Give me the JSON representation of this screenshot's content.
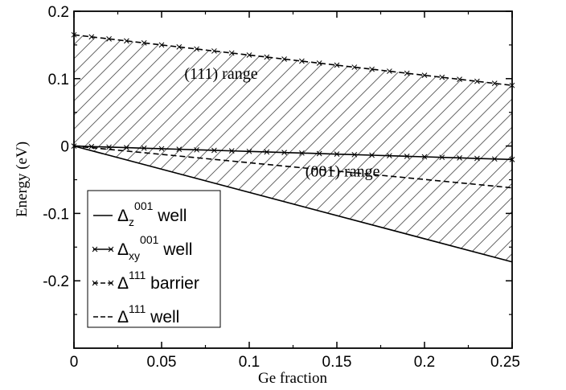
{
  "chart_data": {
    "type": "line",
    "title": "",
    "xlabel": "Ge fraction",
    "ylabel": "Energy (eV)",
    "xlim": [
      0,
      0.25
    ],
    "ylim": [
      -0.3,
      0.2
    ],
    "x_ticks": [
      {
        "value": 0,
        "label": "0"
      },
      {
        "value": 0.05,
        "label": "0.05"
      },
      {
        "value": 0.1,
        "label": "0.1"
      },
      {
        "value": 0.15,
        "label": "0.15"
      },
      {
        "value": 0.2,
        "label": "0.2"
      },
      {
        "value": 0.25,
        "label": "0.25"
      }
    ],
    "y_ticks": [
      {
        "value": -0.2,
        "label": "-0.2"
      },
      {
        "value": -0.1,
        "label": "-0.1"
      },
      {
        "value": 0,
        "label": "0"
      },
      {
        "value": 0.1,
        "label": "0.1"
      },
      {
        "value": 0.2,
        "label": "0.2"
      }
    ],
    "grid": false,
    "legend_placement": "bottom-left",
    "series": [
      {
        "key": "dz001",
        "sym": "Δ",
        "sub": "z",
        "sup": "001",
        "tail": "well",
        "style": "solid",
        "x": [
          0,
          0.25
        ],
        "y": [
          0,
          -0.172
        ]
      },
      {
        "key": "dxy001",
        "sym": "Δ",
        "sub": "xy",
        "sup": "001",
        "tail": "well",
        "style": "solid-x",
        "x": [
          0,
          0.01,
          0.02,
          0.03,
          0.04,
          0.05,
          0.06,
          0.07,
          0.08,
          0.09,
          0.1,
          0.11,
          0.12,
          0.13,
          0.14,
          0.15,
          0.16,
          0.17,
          0.18,
          0.19,
          0.2,
          0.21,
          0.22,
          0.23,
          0.24,
          0.25
        ],
        "y": [
          0,
          -0.0008,
          -0.0016,
          -0.0024,
          -0.0032,
          -0.004,
          -0.0048,
          -0.0056,
          -0.0064,
          -0.0072,
          -0.008,
          -0.0088,
          -0.0096,
          -0.0104,
          -0.0112,
          -0.012,
          -0.0128,
          -0.0136,
          -0.0144,
          -0.0152,
          -0.016,
          -0.0168,
          -0.0176,
          -0.0184,
          -0.0192,
          -0.02
        ]
      },
      {
        "key": "d111b",
        "sym": "Δ",
        "sub": "",
        "sup": "111",
        "tail": "barrier",
        "style": "dashed-x",
        "x": [
          0,
          0.01,
          0.02,
          0.03,
          0.04,
          0.05,
          0.06,
          0.07,
          0.08,
          0.09,
          0.1,
          0.11,
          0.12,
          0.13,
          0.14,
          0.15,
          0.16,
          0.17,
          0.18,
          0.19,
          0.2,
          0.21,
          0.22,
          0.23,
          0.24,
          0.25
        ],
        "y": [
          0.165,
          0.162,
          0.159,
          0.156,
          0.153,
          0.15,
          0.147,
          0.144,
          0.141,
          0.138,
          0.135,
          0.132,
          0.129,
          0.126,
          0.123,
          0.12,
          0.117,
          0.114,
          0.111,
          0.108,
          0.105,
          0.102,
          0.099,
          0.096,
          0.093,
          0.09
        ]
      },
      {
        "key": "d111w",
        "sym": "Δ",
        "sub": "",
        "sup": "111",
        "tail": "well",
        "style": "dashed",
        "x": [
          0,
          0.25
        ],
        "y": [
          0,
          -0.062
        ]
      }
    ],
    "regions": [
      {
        "name": "(111) range",
        "label": "(111) range",
        "upper": "d111b",
        "lower": "dxy001",
        "label_x": 0.063,
        "label_y": 0.1
      },
      {
        "name": "(001) range",
        "label": "(001) range",
        "upper": "dxy001",
        "lower": "dz001",
        "label_x": 0.132,
        "label_y": -0.045
      }
    ]
  }
}
